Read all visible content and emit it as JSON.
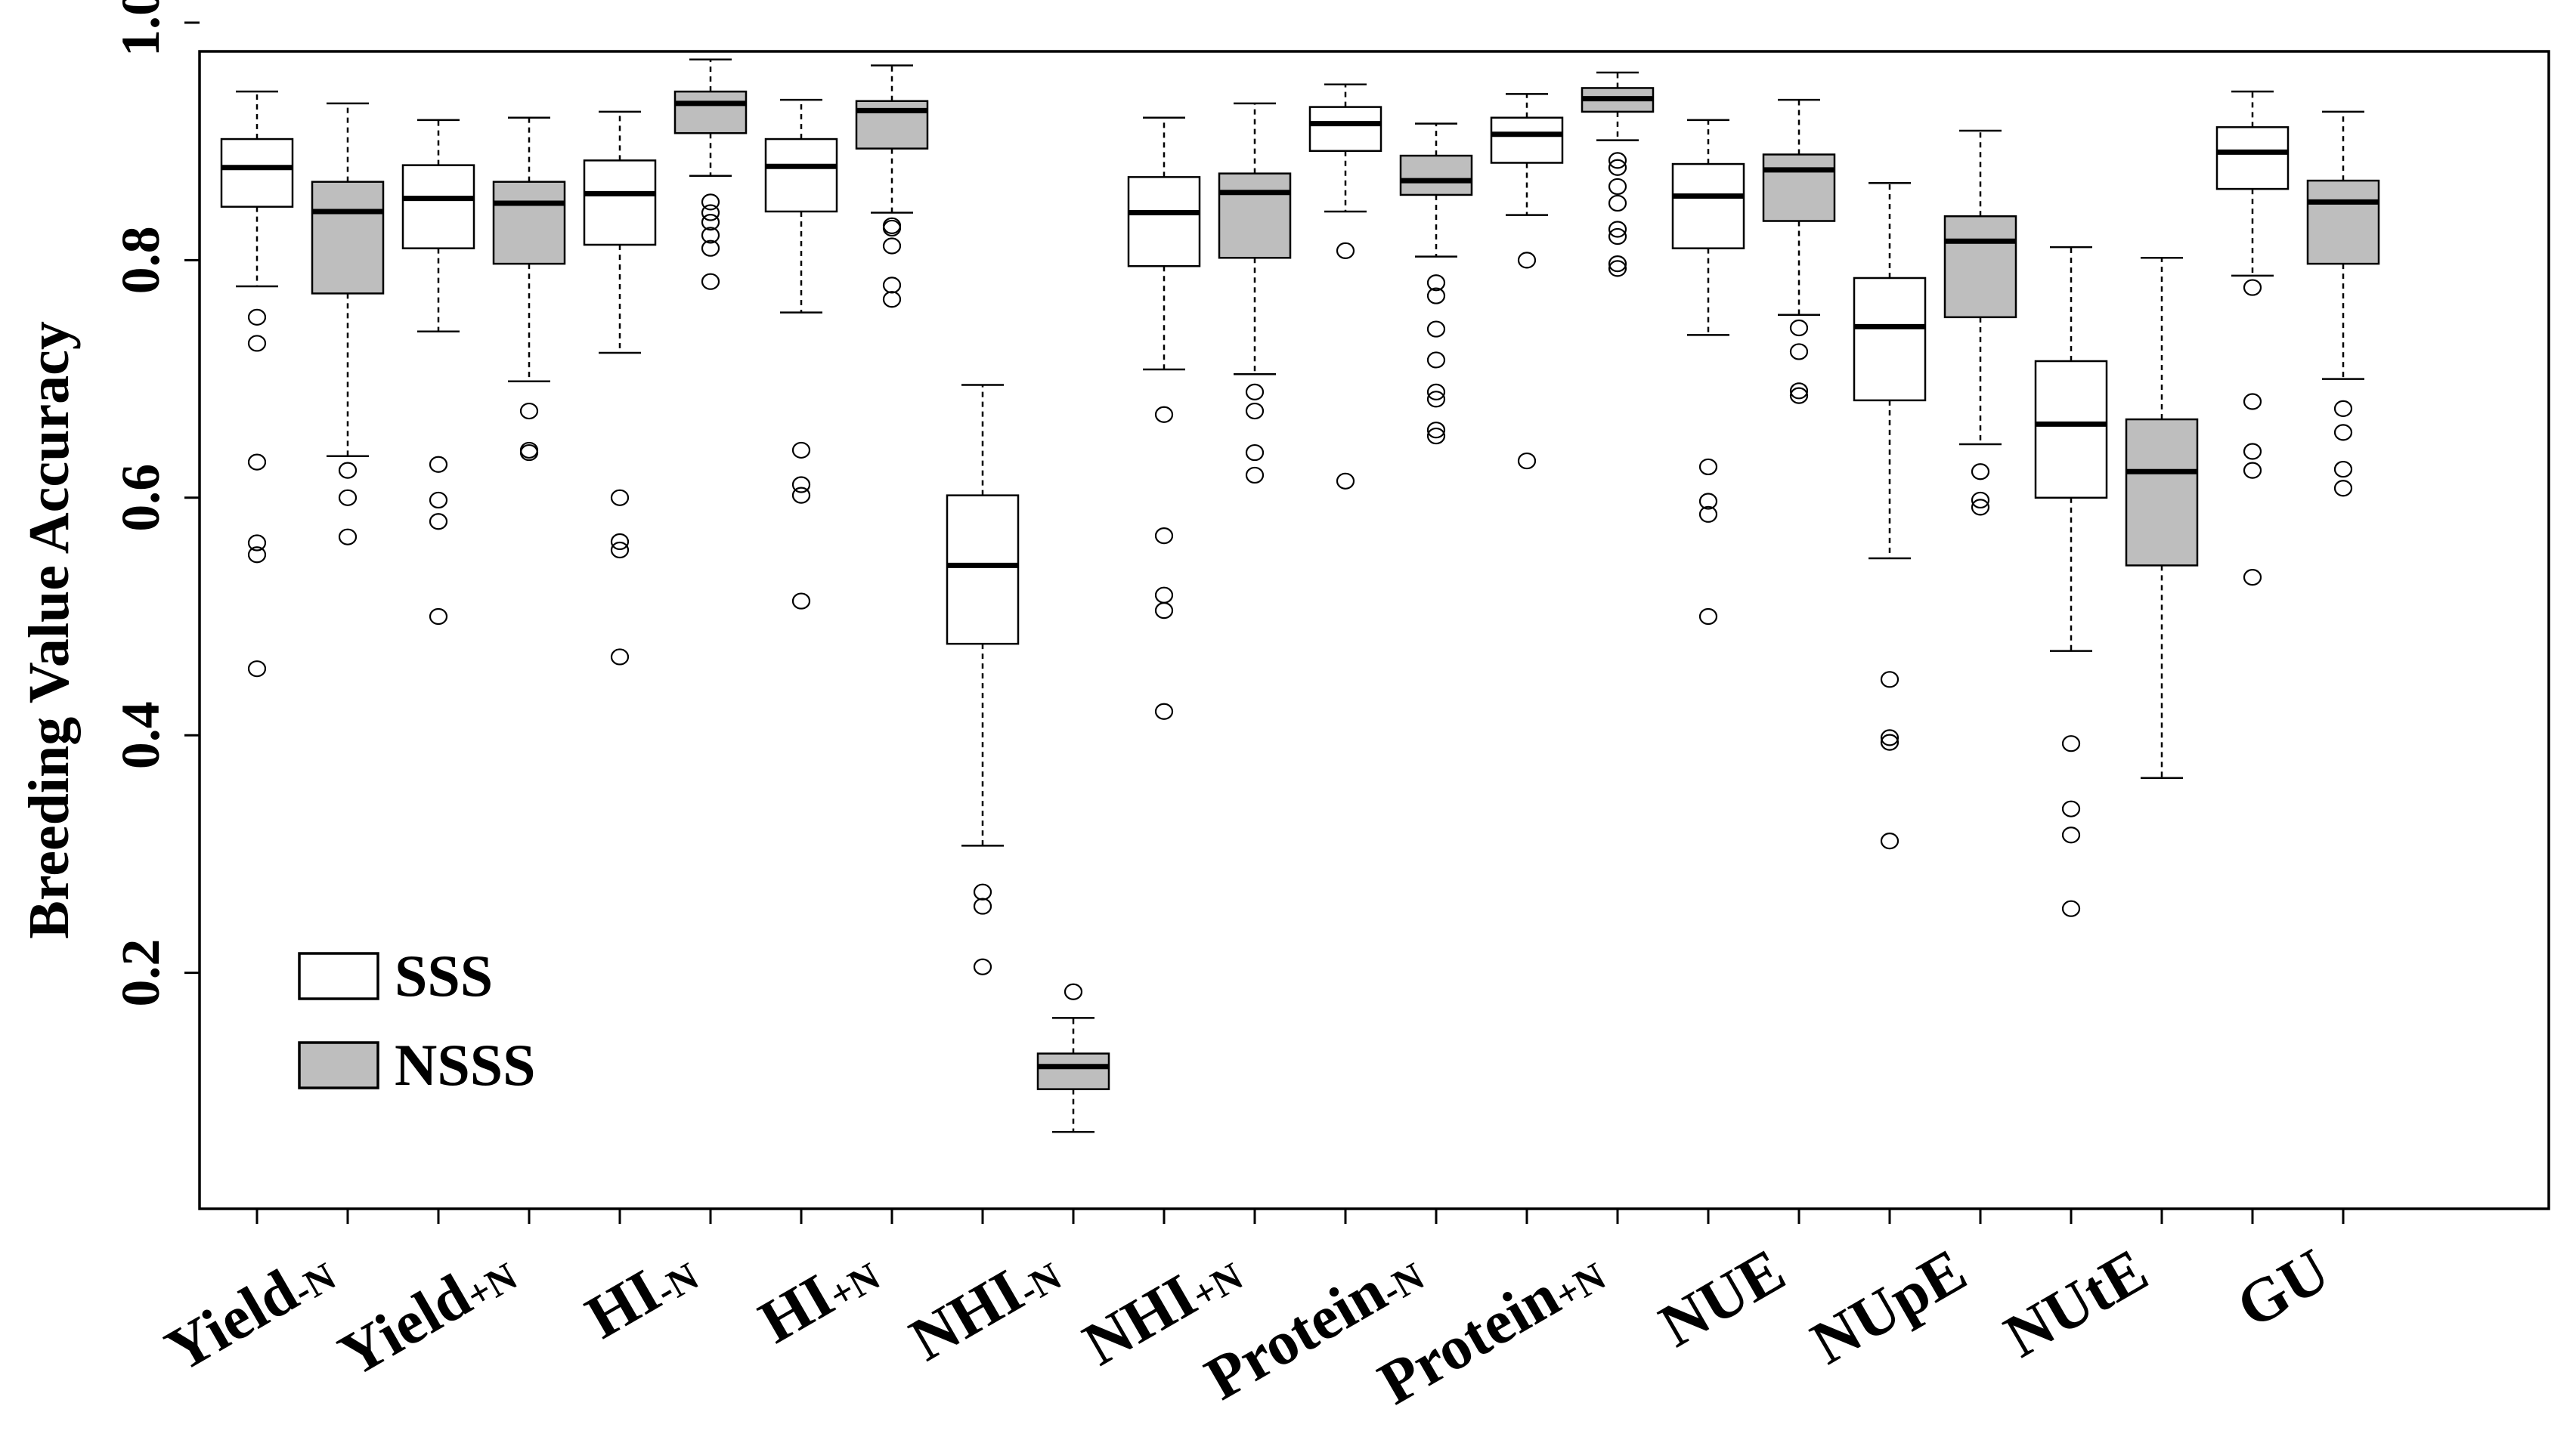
{
  "chart_data": {
    "type": "boxplot",
    "title": "",
    "xlabel": "",
    "ylabel": "Breeding Value Accuracy",
    "ylim": [
      0.03,
      1.0
    ],
    "yticks": [
      "0.2",
      "0.4",
      "0.6",
      "0.8",
      "1.0"
    ],
    "colors": {
      "SSS": "#ffffff",
      "NSSS": "#bebebe",
      "stroke": "#000000"
    },
    "legend": {
      "position": "bottom-left",
      "entries": [
        {
          "label": "SSS",
          "color": "#ffffff"
        },
        {
          "label": "NSSS",
          "color": "#bebebe"
        }
      ]
    },
    "categories": [
      {
        "base": "Yield",
        "sub": "-N"
      },
      {
        "base": "Yield",
        "sub": "+N"
      },
      {
        "base": "HI",
        "sub": "-N"
      },
      {
        "base": "HI",
        "sub": "+N"
      },
      {
        "base": "NHI",
        "sub": "-N"
      },
      {
        "base": "NHI",
        "sub": "+N"
      },
      {
        "base": "Protein",
        "sub": "-N"
      },
      {
        "base": "Protein",
        "sub": "+N"
      },
      {
        "base": "NUE",
        "sub": ""
      },
      {
        "base": "NUpE",
        "sub": ""
      },
      {
        "base": "NUtE",
        "sub": ""
      },
      {
        "base": "GU",
        "sub": ""
      }
    ],
    "series": [
      {
        "name": "SSS",
        "boxes": [
          {
            "whislo": 0.778,
            "q1": 0.845,
            "med": 0.878,
            "q3": 0.902,
            "whishi": 0.942,
            "fliers": [
              0.752,
              0.73,
              0.63,
              0.562,
              0.552,
              0.456
            ]
          },
          {
            "whislo": 0.74,
            "q1": 0.81,
            "med": 0.852,
            "q3": 0.88,
            "whishi": 0.918,
            "fliers": [
              0.628,
              0.598,
              0.58,
              0.5
            ]
          },
          {
            "whislo": 0.722,
            "q1": 0.813,
            "med": 0.856,
            "q3": 0.884,
            "whishi": 0.925,
            "fliers": [
              0.6,
              0.563,
              0.556,
              0.466
            ]
          },
          {
            "whislo": 0.756,
            "q1": 0.841,
            "med": 0.879,
            "q3": 0.902,
            "whishi": 0.935,
            "fliers": [
              0.64,
              0.611,
              0.602,
              0.513
            ]
          },
          {
            "whislo": 0.307,
            "q1": 0.477,
            "med": 0.543,
            "q3": 0.602,
            "whishi": 0.695,
            "fliers": [
              0.268,
              0.256,
              0.205
            ]
          },
          {
            "whislo": 0.708,
            "q1": 0.795,
            "med": 0.84,
            "q3": 0.87,
            "whishi": 0.92,
            "fliers": [
              0.67,
              0.568,
              0.518,
              0.505,
              0.42
            ]
          },
          {
            "whislo": 0.841,
            "q1": 0.892,
            "med": 0.915,
            "q3": 0.929,
            "whishi": 0.948,
            "fliers": [
              0.808,
              0.614
            ]
          },
          {
            "whislo": 0.838,
            "q1": 0.882,
            "med": 0.906,
            "q3": 0.92,
            "whishi": 0.94,
            "fliers": [
              0.8,
              0.631
            ]
          },
          {
            "whislo": 0.737,
            "q1": 0.81,
            "med": 0.854,
            "q3": 0.881,
            "whishi": 0.918,
            "fliers": [
              0.626,
              0.597,
              0.586,
              0.5
            ]
          },
          {
            "whislo": 0.549,
            "q1": 0.682,
            "med": 0.744,
            "q3": 0.785,
            "whishi": 0.865,
            "fliers": [
              0.447,
              0.398,
              0.394,
              0.311
            ]
          },
          {
            "whislo": 0.471,
            "q1": 0.6,
            "med": 0.662,
            "q3": 0.715,
            "whishi": 0.811,
            "fliers": [
              0.393,
              0.338,
              0.316,
              0.254
            ]
          },
          {
            "whislo": 0.787,
            "q1": 0.86,
            "med": 0.891,
            "q3": 0.912,
            "whishi": 0.942,
            "fliers": [
              0.777,
              0.681,
              0.639,
              0.623,
              0.533
            ]
          }
        ]
      },
      {
        "name": "NSSS",
        "boxes": [
          {
            "whislo": 0.635,
            "q1": 0.772,
            "med": 0.841,
            "q3": 0.866,
            "whishi": 0.932,
            "fliers": [
              0.623,
              0.6,
              0.567
            ]
          },
          {
            "whislo": 0.698,
            "q1": 0.797,
            "med": 0.848,
            "q3": 0.866,
            "whishi": 0.92,
            "fliers": [
              0.673,
              0.64,
              0.638
            ]
          },
          {
            "whislo": 0.871,
            "q1": 0.907,
            "med": 0.932,
            "q3": 0.942,
            "whishi": 0.969,
            "fliers": [
              0.849,
              0.84,
              0.832,
              0.821,
              0.81,
              0.782
            ]
          },
          {
            "whislo": 0.84,
            "q1": 0.894,
            "med": 0.926,
            "q3": 0.934,
            "whishi": 0.964,
            "fliers": [
              0.829,
              0.827,
              0.812,
              0.779,
              0.767
            ]
          },
          {
            "whislo": 0.066,
            "q1": 0.102,
            "med": 0.121,
            "q3": 0.132,
            "whishi": 0.162,
            "fliers": [
              0.184
            ]
          },
          {
            "whislo": 0.704,
            "q1": 0.802,
            "med": 0.857,
            "q3": 0.873,
            "whishi": 0.932,
            "fliers": [
              0.689,
              0.673,
              0.638,
              0.619
            ]
          },
          {
            "whislo": 0.803,
            "q1": 0.855,
            "med": 0.867,
            "q3": 0.888,
            "whishi": 0.915,
            "fliers": [
              0.781,
              0.77,
              0.742,
              0.716,
              0.689,
              0.683,
              0.657,
              0.652
            ]
          },
          {
            "whislo": 0.901,
            "q1": 0.925,
            "med": 0.936,
            "q3": 0.945,
            "whishi": 0.958,
            "fliers": [
              0.884,
              0.878,
              0.862,
              0.848,
              0.826,
              0.82,
              0.797,
              0.793
            ]
          },
          {
            "whislo": 0.754,
            "q1": 0.833,
            "med": 0.876,
            "q3": 0.889,
            "whishi": 0.935,
            "fliers": [
              0.743,
              0.723,
              0.69,
              0.686
            ]
          },
          {
            "whislo": 0.645,
            "q1": 0.752,
            "med": 0.816,
            "q3": 0.837,
            "whishi": 0.909,
            "fliers": [
              0.622,
              0.598,
              0.592
            ]
          },
          {
            "whislo": 0.364,
            "q1": 0.543,
            "med": 0.622,
            "q3": 0.666,
            "whishi": 0.802,
            "fliers": []
          },
          {
            "whislo": 0.7,
            "q1": 0.797,
            "med": 0.849,
            "q3": 0.867,
            "whishi": 0.925,
            "fliers": [
              0.675,
              0.655,
              0.624,
              0.608
            ]
          }
        ]
      }
    ]
  }
}
